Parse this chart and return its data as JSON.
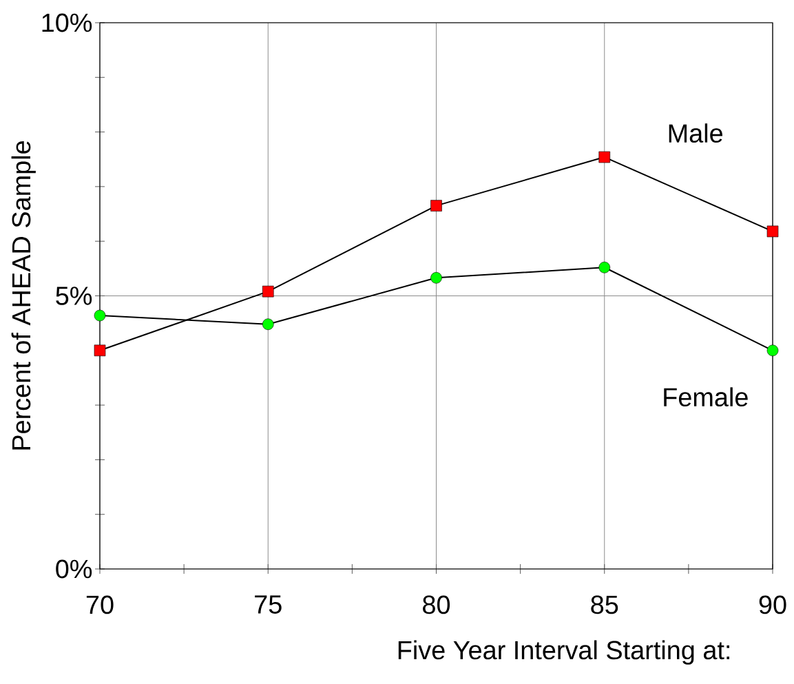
{
  "chart_data": {
    "type": "line",
    "xlabel": "Five Year Interval Starting at:",
    "ylabel": "Percent of AHEAD Sample",
    "x": [
      70,
      75,
      80,
      85,
      90
    ],
    "series": [
      {
        "name": "Male",
        "color": "#ff0000",
        "marker": "square",
        "values": [
          4.0,
          5.08,
          6.65,
          7.54,
          6.18
        ]
      },
      {
        "name": "Female",
        "color": "#00ff00",
        "marker": "circle",
        "values": [
          4.64,
          4.48,
          5.33,
          5.52,
          4.0
        ]
      }
    ],
    "xlim": [
      70,
      90
    ],
    "xticks": [
      70,
      {
        "value": 72.5,
        "label": null
      },
      75,
      {
        "value": 77.5,
        "label": null
      },
      80,
      {
        "value": 82.5,
        "label": null
      },
      85,
      {
        "value": 87.5,
        "label": null
      },
      90
    ],
    "ylim": [
      0,
      10
    ],
    "yticks": [
      {
        "value": 0,
        "label": "0%"
      },
      {
        "value": 1,
        "label": null
      },
      {
        "value": 2,
        "label": null
      },
      {
        "value": 3,
        "label": null
      },
      {
        "value": 4,
        "label": null
      },
      {
        "value": 5,
        "label": "5%"
      },
      {
        "value": 6,
        "label": null
      },
      {
        "value": 7,
        "label": null
      },
      {
        "value": 8,
        "label": null
      },
      {
        "value": 9,
        "label": null
      },
      {
        "value": 10,
        "label": "10%"
      }
    ],
    "grid": true,
    "line_style": "solid"
  }
}
